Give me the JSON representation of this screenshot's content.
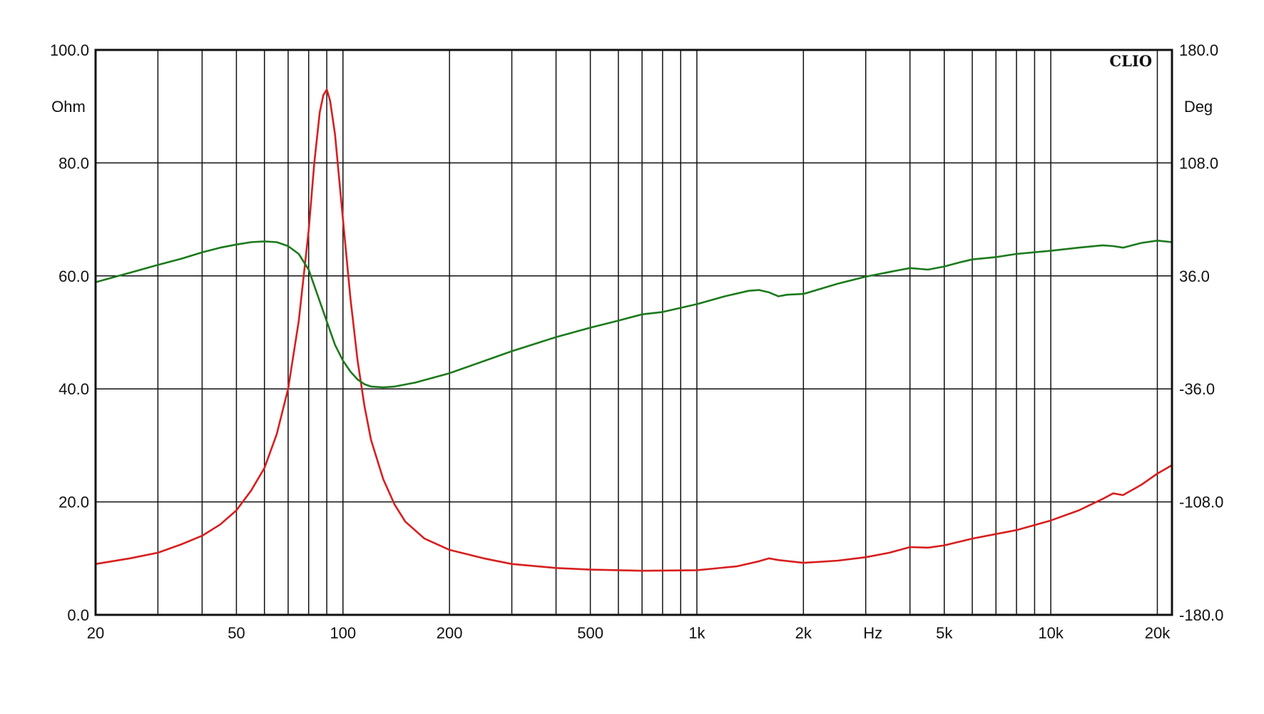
{
  "chart_data": {
    "type": "line",
    "brand": "CLIO",
    "xlabel": "Hz",
    "ylabel_left": "Ohm",
    "ylabel_right": "Deg",
    "x_scale": "log",
    "xlim": [
      20,
      22000
    ],
    "ylim_left": [
      0,
      100
    ],
    "ylim_right": [
      -180,
      180
    ],
    "grid": true,
    "x_ticks": [
      {
        "value": 20,
        "label": "20"
      },
      {
        "value": 50,
        "label": "50"
      },
      {
        "value": 100,
        "label": "100"
      },
      {
        "value": 200,
        "label": "200"
      },
      {
        "value": 500,
        "label": "500"
      },
      {
        "value": 1000,
        "label": "1k"
      },
      {
        "value": 2000,
        "label": "2k"
      },
      {
        "value": 5000,
        "label": "5k"
      },
      {
        "value": 10000,
        "label": "10k"
      },
      {
        "value": 20000,
        "label": "20k"
      }
    ],
    "x_grid": [
      30,
      40,
      50,
      60,
      70,
      80,
      90,
      100,
      200,
      300,
      400,
      500,
      600,
      700,
      800,
      900,
      1000,
      2000,
      3000,
      4000,
      5000,
      6000,
      7000,
      8000,
      9000,
      10000,
      20000
    ],
    "y_ticks_left": [
      "0.0",
      "20.0",
      "40.0",
      "60.0",
      "80.0",
      "100.0"
    ],
    "y_ticks_right": [
      "-180.0",
      "-108.0",
      "-36.0",
      "36.0",
      "108.0",
      "180.0"
    ],
    "series": [
      {
        "axis": "left",
        "color": "#d81e1e",
        "x": [
          20,
          25,
          30,
          35,
          40,
          45,
          50,
          55,
          60,
          65,
          70,
          75,
          80,
          83,
          86,
          88,
          90,
          92,
          95,
          100,
          105,
          110,
          115,
          120,
          130,
          140,
          150,
          170,
          200,
          250,
          300,
          400,
          500,
          700,
          1000,
          1300,
          1500,
          1600,
          1700,
          2000,
          2500,
          3000,
          3500,
          4000,
          4500,
          5000,
          6000,
          7000,
          8000,
          10000,
          12000,
          14000,
          15000,
          16000,
          18000,
          20000,
          22000
        ],
        "y": [
          9,
          10,
          11,
          12.5,
          14,
          16,
          18.5,
          22,
          26,
          32,
          40,
          52,
          68,
          80,
          89,
          92,
          93,
          91,
          85,
          70,
          56,
          45,
          37,
          31,
          24,
          19.5,
          16.5,
          13.5,
          11.5,
          10,
          9,
          8.3,
          8,
          7.8,
          7.9,
          8.6,
          9.5,
          10,
          9.7,
          9.2,
          9.6,
          10.2,
          11,
          12,
          11.9,
          12.3,
          13.5,
          14.3,
          15,
          16.7,
          18.5,
          20.5,
          21.5,
          21.2,
          23,
          25,
          26.5
        ]
      },
      {
        "axis": "right",
        "color": "#1c7a1c",
        "x": [
          20,
          25,
          30,
          35,
          40,
          45,
          50,
          55,
          60,
          65,
          70,
          75,
          80,
          85,
          90,
          95,
          100,
          105,
          110,
          115,
          120,
          130,
          140,
          160,
          200,
          300,
          400,
          500,
          600,
          700,
          800,
          1000,
          1200,
          1400,
          1500,
          1600,
          1700,
          1800,
          2000,
          2500,
          3000,
          3500,
          4000,
          4500,
          5000,
          5500,
          6000,
          7000,
          8000,
          10000,
          12000,
          14000,
          15000,
          16000,
          18000,
          20000,
          22000
        ],
        "y": [
          32,
          38,
          43,
          47,
          51,
          54,
          56,
          57.5,
          58,
          57.5,
          55,
          50,
          40,
          23,
          7,
          -8,
          -18,
          -25,
          -30,
          -33,
          -34.5,
          -35,
          -34.5,
          -32,
          -26,
          -12,
          -3,
          3,
          7.5,
          11.5,
          13,
          18,
          23,
          26.5,
          27,
          25.5,
          23,
          24,
          24.5,
          31,
          35.5,
          38.5,
          41,
          40,
          42,
          44.5,
          46.5,
          48,
          50,
          52,
          54,
          55.5,
          55,
          54,
          57,
          58.5,
          57.5
        ]
      }
    ]
  }
}
